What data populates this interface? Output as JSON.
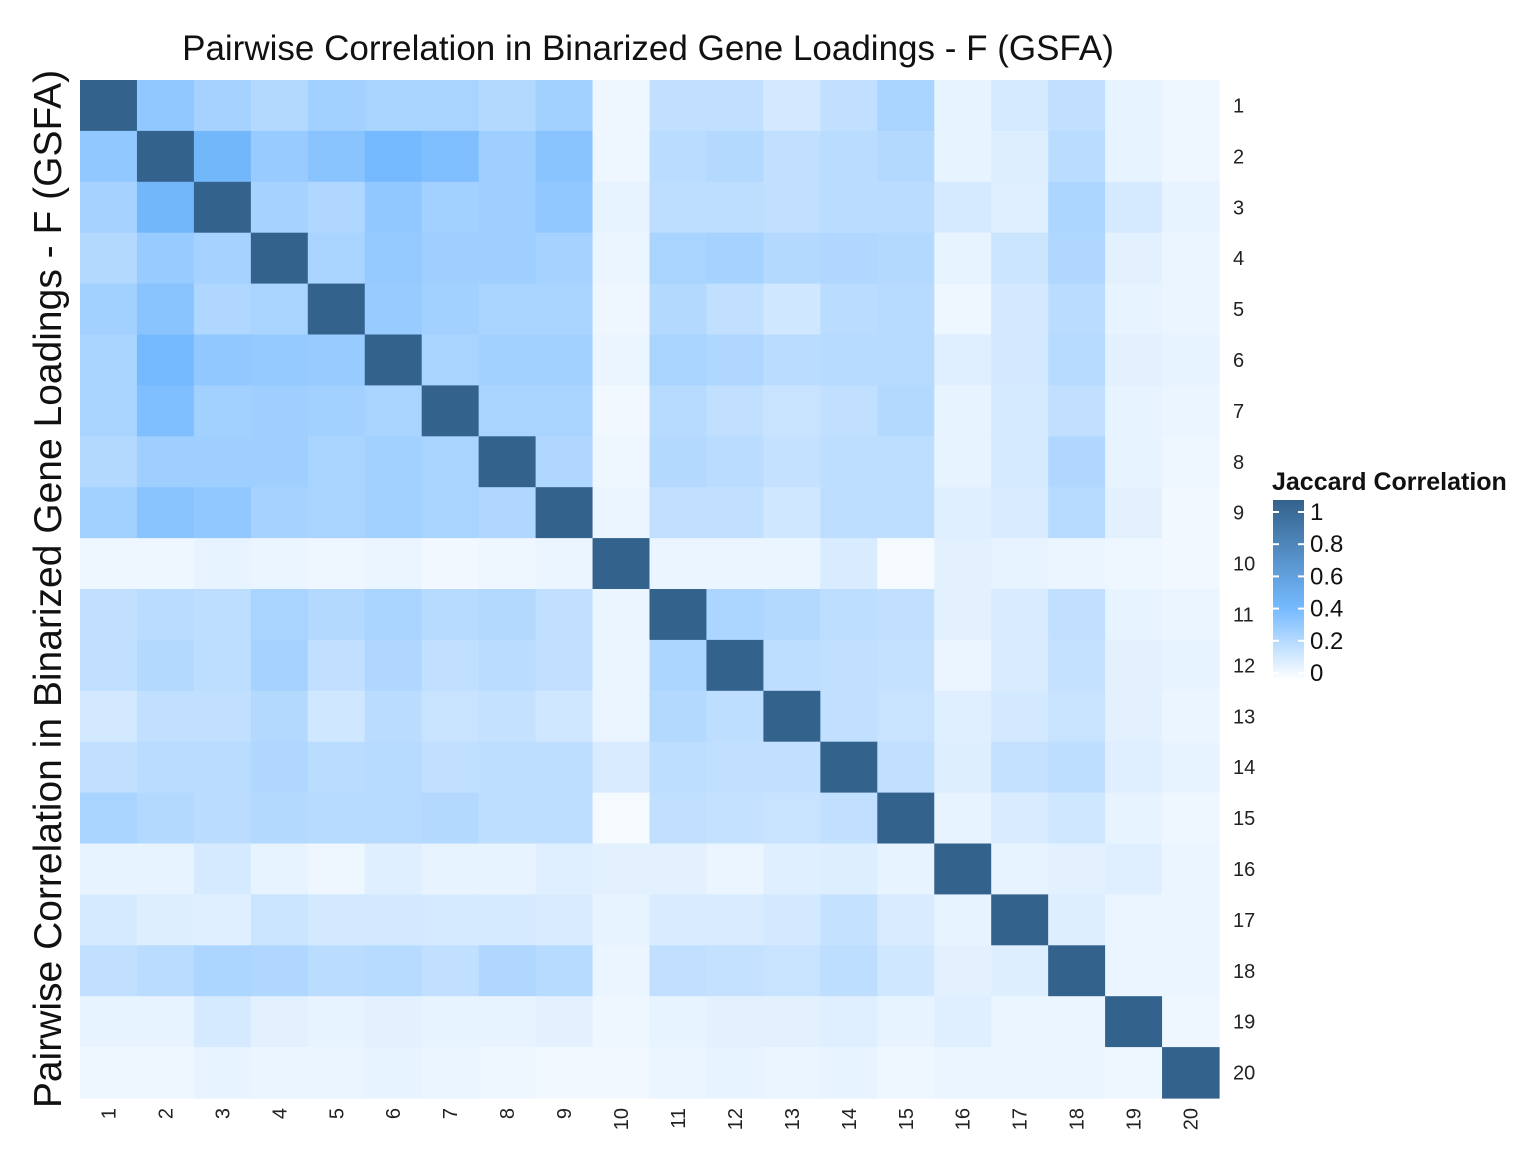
{
  "chart_data": {
    "type": "heatmap",
    "title": "Pairwise Correlation in Binarized Gene Loadings - F (GSFA)",
    "xlabel": "",
    "ylabel": "Pairwise Correlation in Binarized Gene Loadings - F (GSFA)",
    "categories": [
      "1",
      "2",
      "3",
      "4",
      "5",
      "6",
      "7",
      "8",
      "9",
      "10",
      "11",
      "12",
      "13",
      "14",
      "15",
      "16",
      "17",
      "18",
      "19",
      "20"
    ],
    "legend": {
      "title": "Jaccard Correlation",
      "ticks": [
        "1",
        "0.8",
        "0.6",
        "0.4",
        "0.2",
        "0"
      ],
      "tick_values": [
        1,
        0.8,
        0.6,
        0.4,
        0.2,
        0
      ],
      "position": "right"
    },
    "color_scale": {
      "low": "#ffffff",
      "mid": "#75baff",
      "high": "#33628c",
      "range": [
        0,
        1
      ]
    },
    "values": [
      [
        1.0,
        0.32,
        0.26,
        0.22,
        0.27,
        0.25,
        0.25,
        0.22,
        0.27,
        0.05,
        0.18,
        0.18,
        0.13,
        0.18,
        0.25,
        0.07,
        0.12,
        0.18,
        0.07,
        0.05
      ],
      [
        0.32,
        1.0,
        0.42,
        0.3,
        0.34,
        0.4,
        0.37,
        0.28,
        0.34,
        0.05,
        0.2,
        0.22,
        0.18,
        0.2,
        0.22,
        0.07,
        0.1,
        0.2,
        0.07,
        0.05
      ],
      [
        0.26,
        0.42,
        1.0,
        0.26,
        0.23,
        0.32,
        0.27,
        0.28,
        0.32,
        0.07,
        0.19,
        0.19,
        0.18,
        0.2,
        0.2,
        0.12,
        0.09,
        0.24,
        0.12,
        0.07
      ],
      [
        0.22,
        0.3,
        0.26,
        1.0,
        0.25,
        0.31,
        0.28,
        0.28,
        0.26,
        0.06,
        0.25,
        0.26,
        0.22,
        0.23,
        0.22,
        0.07,
        0.15,
        0.23,
        0.08,
        0.06
      ],
      [
        0.27,
        0.34,
        0.23,
        0.25,
        1.0,
        0.3,
        0.27,
        0.25,
        0.25,
        0.05,
        0.22,
        0.18,
        0.14,
        0.2,
        0.21,
        0.05,
        0.13,
        0.2,
        0.07,
        0.06
      ],
      [
        0.25,
        0.4,
        0.32,
        0.31,
        0.3,
        1.0,
        0.25,
        0.27,
        0.27,
        0.06,
        0.25,
        0.23,
        0.2,
        0.21,
        0.21,
        0.09,
        0.13,
        0.21,
        0.08,
        0.07
      ],
      [
        0.25,
        0.37,
        0.27,
        0.28,
        0.27,
        0.25,
        1.0,
        0.25,
        0.25,
        0.04,
        0.21,
        0.18,
        0.16,
        0.18,
        0.22,
        0.07,
        0.12,
        0.18,
        0.07,
        0.06
      ],
      [
        0.22,
        0.28,
        0.28,
        0.28,
        0.25,
        0.27,
        0.25,
        1.0,
        0.23,
        0.05,
        0.22,
        0.2,
        0.17,
        0.19,
        0.19,
        0.07,
        0.12,
        0.23,
        0.07,
        0.05
      ],
      [
        0.27,
        0.34,
        0.32,
        0.26,
        0.25,
        0.27,
        0.25,
        0.23,
        1.0,
        0.06,
        0.18,
        0.18,
        0.14,
        0.19,
        0.19,
        0.09,
        0.11,
        0.21,
        0.08,
        0.04
      ],
      [
        0.05,
        0.05,
        0.07,
        0.06,
        0.05,
        0.06,
        0.04,
        0.05,
        0.06,
        1.0,
        0.06,
        0.06,
        0.06,
        0.11,
        0.03,
        0.08,
        0.07,
        0.06,
        0.05,
        0.04
      ],
      [
        0.18,
        0.2,
        0.19,
        0.25,
        0.22,
        0.25,
        0.21,
        0.22,
        0.18,
        0.06,
        1.0,
        0.24,
        0.22,
        0.19,
        0.18,
        0.08,
        0.11,
        0.18,
        0.07,
        0.06
      ],
      [
        0.18,
        0.22,
        0.19,
        0.26,
        0.18,
        0.23,
        0.18,
        0.2,
        0.18,
        0.06,
        0.24,
        1.0,
        0.19,
        0.18,
        0.17,
        0.06,
        0.11,
        0.17,
        0.08,
        0.07
      ],
      [
        0.13,
        0.18,
        0.18,
        0.22,
        0.14,
        0.2,
        0.16,
        0.17,
        0.14,
        0.06,
        0.22,
        0.19,
        1.0,
        0.18,
        0.16,
        0.09,
        0.13,
        0.16,
        0.08,
        0.06
      ],
      [
        0.18,
        0.2,
        0.2,
        0.23,
        0.2,
        0.21,
        0.18,
        0.19,
        0.19,
        0.11,
        0.19,
        0.18,
        0.18,
        1.0,
        0.18,
        0.1,
        0.17,
        0.19,
        0.09,
        0.07
      ],
      [
        0.25,
        0.22,
        0.2,
        0.22,
        0.21,
        0.21,
        0.22,
        0.19,
        0.19,
        0.03,
        0.18,
        0.17,
        0.16,
        0.18,
        1.0,
        0.07,
        0.11,
        0.14,
        0.07,
        0.05
      ],
      [
        0.07,
        0.07,
        0.12,
        0.07,
        0.05,
        0.09,
        0.07,
        0.07,
        0.09,
        0.08,
        0.08,
        0.06,
        0.09,
        0.1,
        0.07,
        1.0,
        0.07,
        0.08,
        0.09,
        0.06
      ],
      [
        0.12,
        0.1,
        0.09,
        0.15,
        0.13,
        0.13,
        0.12,
        0.12,
        0.11,
        0.07,
        0.11,
        0.11,
        0.13,
        0.17,
        0.11,
        0.07,
        1.0,
        0.1,
        0.06,
        0.06
      ],
      [
        0.18,
        0.2,
        0.24,
        0.23,
        0.2,
        0.21,
        0.18,
        0.23,
        0.21,
        0.06,
        0.18,
        0.17,
        0.16,
        0.19,
        0.14,
        0.08,
        0.1,
        1.0,
        0.06,
        0.06
      ],
      [
        0.07,
        0.07,
        0.12,
        0.08,
        0.07,
        0.08,
        0.07,
        0.07,
        0.08,
        0.05,
        0.07,
        0.08,
        0.08,
        0.09,
        0.07,
        0.09,
        0.06,
        0.06,
        1.0,
        0.05
      ],
      [
        0.05,
        0.05,
        0.07,
        0.06,
        0.06,
        0.07,
        0.06,
        0.05,
        0.04,
        0.04,
        0.06,
        0.07,
        0.06,
        0.07,
        0.05,
        0.06,
        0.06,
        0.06,
        0.05,
        1.0
      ]
    ]
  }
}
